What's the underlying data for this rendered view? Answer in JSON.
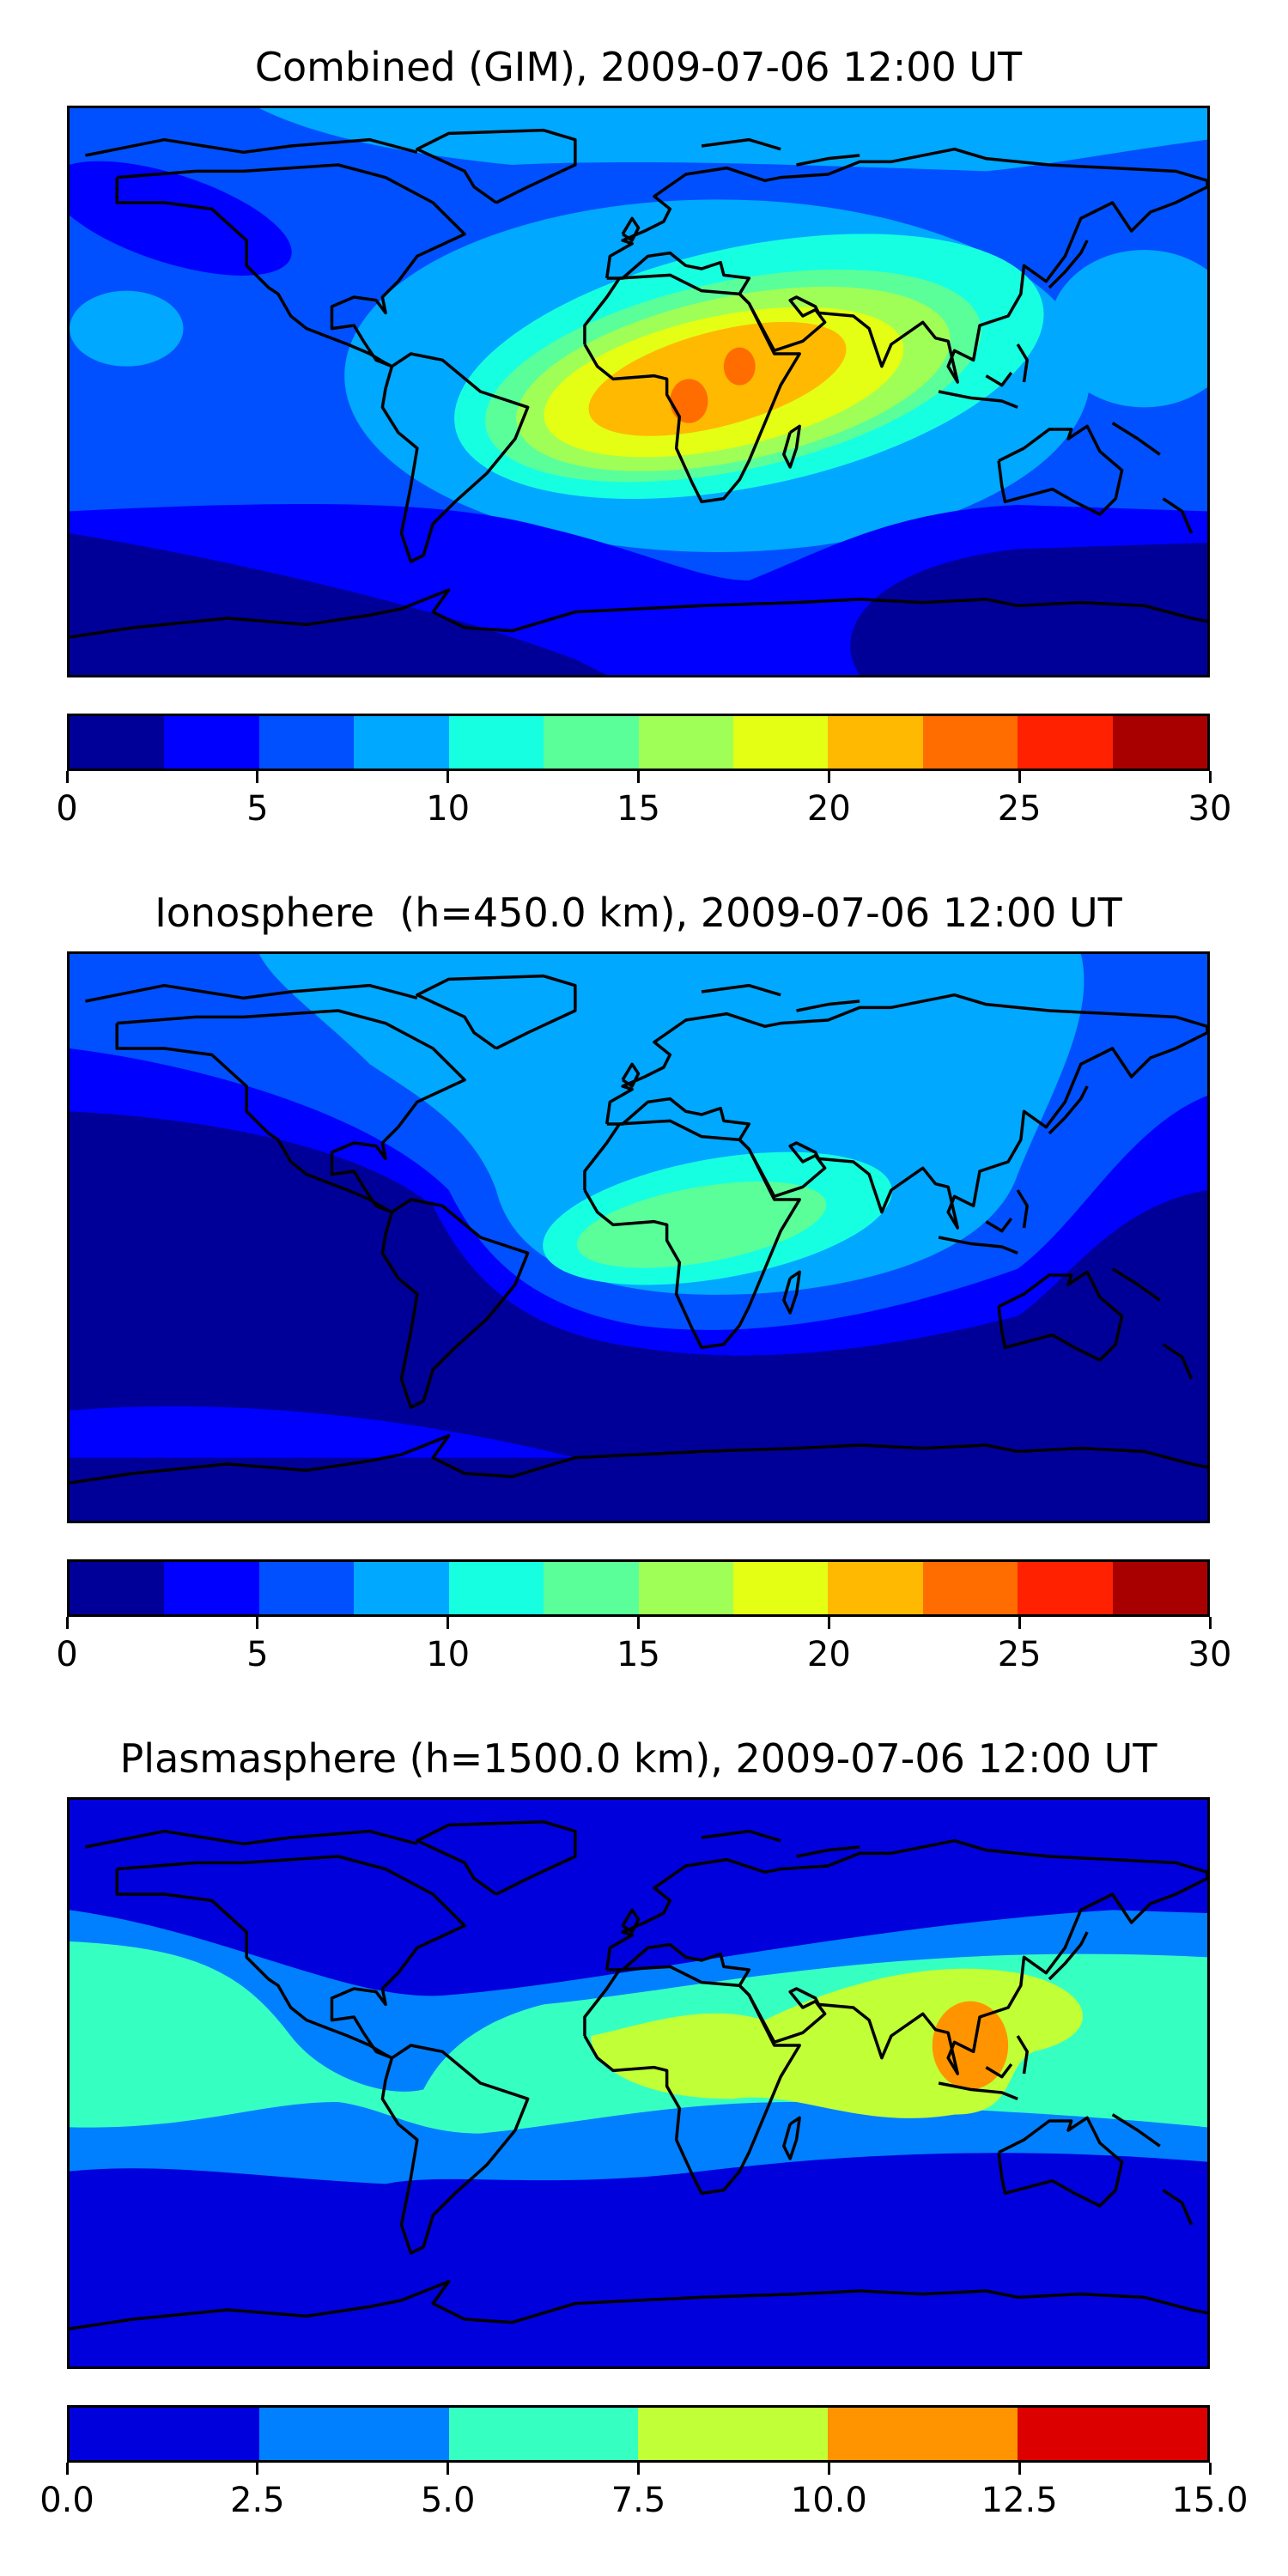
{
  "chart_data": [
    {
      "type": "heatmap",
      "subtype": "filled-contour world map",
      "title": "Combined (GIM), 2009-07-06 12:00 UT",
      "colorbar": {
        "range": [
          0,
          30
        ],
        "levels": [
          0,
          2.5,
          5,
          7.5,
          10,
          12.5,
          15,
          17.5,
          20,
          22.5,
          25,
          27.5,
          30
        ],
        "colors": [
          "#000099",
          "#0000ff",
          "#0050ff",
          "#00a8ff",
          "#16ffe1",
          "#5aff9a",
          "#a0ff56",
          "#e4ff13",
          "#ffb900",
          "#ff6c00",
          "#ff2100",
          "#a80000"
        ],
        "ticks": [
          0,
          5,
          10,
          15,
          20,
          25,
          30
        ],
        "tick_labels": [
          "0",
          "5",
          "10",
          "15",
          "20",
          "25",
          "30"
        ]
      },
      "max_region": "Central Africa / Red Sea (22.5-25)"
    },
    {
      "type": "heatmap",
      "subtype": "filled-contour world map",
      "title": "Ionosphere  (h=450.0 km), 2009-07-06 12:00 UT",
      "colorbar": {
        "range": [
          0,
          30
        ],
        "levels": [
          0,
          2.5,
          5,
          7.5,
          10,
          12.5,
          15,
          17.5,
          20,
          22.5,
          25,
          27.5,
          30
        ],
        "colors": [
          "#000099",
          "#0000ff",
          "#0050ff",
          "#00a8ff",
          "#16ffe1",
          "#5aff9a",
          "#a0ff56",
          "#e4ff13",
          "#ffb900",
          "#ff6c00",
          "#ff2100",
          "#a80000"
        ],
        "ticks": [
          0,
          5,
          10,
          15,
          20,
          25,
          30
        ],
        "tick_labels": [
          "0",
          "5",
          "10",
          "15",
          "20",
          "25",
          "30"
        ]
      },
      "max_region": "Africa (12.5-15)"
    },
    {
      "type": "heatmap",
      "subtype": "filled-contour world map",
      "title": "Plasmasphere (h=1500.0 km), 2009-07-06 12:00 UT",
      "colorbar": {
        "range": [
          0,
          15
        ],
        "levels": [
          0,
          2.5,
          5,
          7.5,
          10,
          12.5,
          15
        ],
        "colors": [
          "#0000dc",
          "#0080ff",
          "#36ffc2",
          "#c1ff36",
          "#ff9400",
          "#dc0000"
        ],
        "ticks": [
          0,
          2.5,
          5,
          7.5,
          10,
          12.5,
          15
        ],
        "tick_labels": [
          "0.0",
          "2.5",
          "5.0",
          "7.5",
          "10.0",
          "12.5",
          "15.0"
        ]
      },
      "max_region": "Southeast Asia (10-12.5)"
    }
  ]
}
